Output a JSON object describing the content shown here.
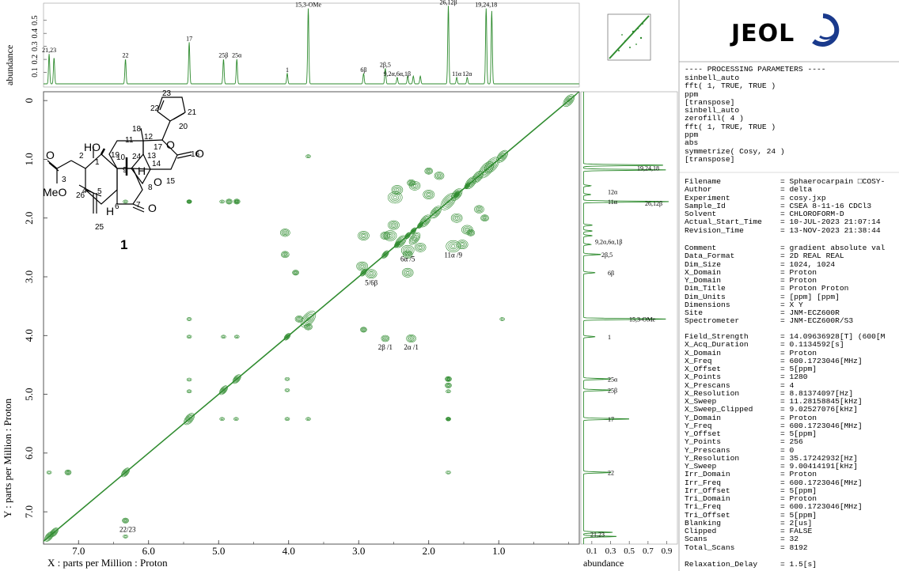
{
  "chart_data": {
    "type": "heatmap",
    "x_axis": {
      "label": "X : parts per Million : Proton",
      "range": [
        7.5,
        -0.15
      ],
      "ticks": [
        "7.0",
        "6.0",
        "5.0",
        "4.0",
        "3.0",
        "2.0",
        "1.0"
      ]
    },
    "y_axis": {
      "label": "Y : parts per Million : Proton",
      "range": [
        -0.15,
        7.55
      ],
      "ticks": [
        "0",
        "1.0",
        "2.0",
        "3.0",
        "4.0",
        "5.0",
        "6.0",
        "7.0"
      ]
    },
    "top_projection": {
      "ylabel": "abundance",
      "ticks": [
        "0.1",
        "0.2",
        "0.3",
        "0.4",
        "0.5"
      ],
      "ylim": [
        0,
        0.62
      ],
      "peaks": [
        {
          "ppm": 7.42,
          "height": 0.23,
          "label": "21,23"
        },
        {
          "ppm": 7.35,
          "height": 0.2,
          "label": ""
        },
        {
          "ppm": 6.33,
          "height": 0.19,
          "label": "22"
        },
        {
          "ppm": 5.42,
          "height": 0.32,
          "label": "17"
        },
        {
          "ppm": 4.93,
          "height": 0.19,
          "label": "25β"
        },
        {
          "ppm": 4.74,
          "height": 0.19,
          "label": "25α"
        },
        {
          "ppm": 4.02,
          "height": 0.08,
          "label": "1"
        },
        {
          "ppm": 3.72,
          "height": 0.58,
          "label": "15,3-OMe"
        },
        {
          "ppm": 2.93,
          "height": 0.08,
          "label": "6β"
        },
        {
          "ppm": 2.62,
          "height": 0.12,
          "label": "2β,5"
        },
        {
          "ppm": 2.45,
          "height": 0.05,
          "label": "9,2α,6α,1β"
        },
        {
          "ppm": 2.3,
          "height": 0.06,
          "label": ""
        },
        {
          "ppm": 2.22,
          "height": 0.06,
          "label": ""
        },
        {
          "ppm": 2.12,
          "height": 0.06,
          "label": ""
        },
        {
          "ppm": 1.72,
          "height": 0.6,
          "label": "26,12β"
        },
        {
          "ppm": 1.6,
          "height": 0.05,
          "label": "11α"
        },
        {
          "ppm": 1.45,
          "height": 0.05,
          "label": "12α"
        },
        {
          "ppm": 1.18,
          "height": 0.58,
          "label": "19,24,18"
        },
        {
          "ppm": 1.1,
          "height": 0.56,
          "label": ""
        }
      ]
    },
    "right_projection": {
      "xlabel": "abundance",
      "ticks": [
        "0.1",
        "0.3",
        "0.5",
        "0.7",
        "0.9"
      ],
      "xlim": [
        0,
        0.98
      ],
      "peak_labels": [
        {
          "ppm": 1.15,
          "label": "19,24,18"
        },
        {
          "ppm": 1.55,
          "label": "12α"
        },
        {
          "ppm": 1.72,
          "label": "11α"
        },
        {
          "ppm": 1.75,
          "label": "26,12β"
        },
        {
          "ppm": 2.4,
          "label": "9,2α,6α,1β"
        },
        {
          "ppm": 2.62,
          "label": "2β,5"
        },
        {
          "ppm": 2.93,
          "label": "6β"
        },
        {
          "ppm": 3.72,
          "label": "15,3-OMe"
        },
        {
          "ppm": 4.02,
          "label": "1"
        },
        {
          "ppm": 4.74,
          "label": "25α"
        },
        {
          "ppm": 4.93,
          "label": "25β"
        },
        {
          "ppm": 5.42,
          "label": "17"
        },
        {
          "ppm": 6.33,
          "label": "22"
        },
        {
          "ppm": 7.38,
          "label": "21,23"
        }
      ]
    },
    "cross_peak_labels": [
      {
        "x": 2.3,
        "y": 2.55,
        "label": "6α /5"
      },
      {
        "x": 1.65,
        "y": 2.48,
        "label": "11α /9"
      },
      {
        "x": 2.82,
        "y": 2.95,
        "label": "5/6β"
      },
      {
        "x": 2.62,
        "y": 4.05,
        "label": "2β /1"
      },
      {
        "x": 2.25,
        "y": 4.05,
        "label": "2α /1"
      },
      {
        "x": 6.3,
        "y": 7.15,
        "label": "22/23"
      }
    ],
    "color": "#2e8b2e"
  },
  "structure": {
    "compound_label": "1",
    "atom_labels": [
      "HO",
      "19",
      "11",
      "12",
      "18",
      "23",
      "22",
      "21",
      "20",
      "17",
      "13",
      "O",
      "16",
      "O",
      "2",
      "1",
      "10",
      "9",
      "24",
      "14",
      "15",
      "O",
      "3",
      "O",
      "MeO",
      "H",
      "5",
      "8",
      "H",
      "26",
      "4",
      "6",
      "7",
      "O",
      "25"
    ]
  },
  "logo": {
    "text": "JEOL"
  },
  "params_header": "---- PROCESSING PARAMETERS ----",
  "processing_steps": [
    "sinbell_auto",
    "fft( 1, TRUE, TRUE )",
    "ppm",
    "[transpose]",
    "sinbell_auto",
    "zerofill( 4 )",
    "fft( 1, TRUE, TRUE )",
    "ppm",
    "abs",
    "symmetrize( Cosy, 24 )",
    "[transpose]"
  ],
  "file_params": [
    [
      "Filename",
      "= Sphaerocarpain □COSY-"
    ],
    [
      "Author",
      "= delta"
    ],
    [
      "Experiment",
      "= cosy.jxp"
    ],
    [
      "Sample_Id",
      "= CSEA 8-11-16 CDCl3"
    ],
    [
      "Solvent",
      "= CHLOROFORM-D"
    ],
    [
      "Actual_Start_Time",
      "= 10-JUL-2023 21:07:14"
    ],
    [
      "Revision_Time",
      "= 13-NOV-2023 21:38:44"
    ]
  ],
  "data_params": [
    [
      "Comment",
      "= gradient absolute val"
    ],
    [
      "Data_Format",
      "= 2D REAL REAL"
    ],
    [
      "Dim_Size",
      "= 1024, 1024"
    ],
    [
      "X_Domain",
      "= Proton"
    ],
    [
      "Y_Domain",
      "= Proton"
    ],
    [
      "Dim_Title",
      "= Proton Proton"
    ],
    [
      "Dim_Units",
      "= [ppm] [ppm]"
    ],
    [
      "Dimensions",
      "= X Y"
    ],
    [
      "Site",
      "= JNM-ECZ600R"
    ],
    [
      "Spectrometer",
      "= JNM-ECZ600R/S3"
    ]
  ],
  "acq_params": [
    [
      "Field_Strength",
      "= 14.09636928[T] (600[M"
    ],
    [
      "X_Acq_Duration",
      "= 0.1134592[s]"
    ],
    [
      "X_Domain",
      "= Proton"
    ],
    [
      "X_Freq",
      "= 600.1723046[MHz]"
    ],
    [
      "X_Offset",
      "= 5[ppm]"
    ],
    [
      "X_Points",
      "= 1280"
    ],
    [
      "X_Prescans",
      "= 4"
    ],
    [
      "X_Resolution",
      "= 8.81374097[Hz]"
    ],
    [
      "X_Sweep",
      "= 11.28158845[kHz]"
    ],
    [
      "X_Sweep_Clipped",
      "= 9.02527076[kHz]"
    ],
    [
      "Y_Domain",
      "= Proton"
    ],
    [
      "Y_Freq",
      "= 600.1723046[MHz]"
    ],
    [
      "Y_Offset",
      "= 5[ppm]"
    ],
    [
      "Y_Points",
      "= 256"
    ],
    [
      "Y_Prescans",
      "= 0"
    ],
    [
      "Y_Resolution",
      "= 35.17242932[Hz]"
    ],
    [
      "Y_Sweep",
      "= 9.00414191[kHz]"
    ],
    [
      "Irr_Domain",
      "= Proton"
    ],
    [
      "Irr_Freq",
      "= 600.1723046[MHz]"
    ],
    [
      "Irr_Offset",
      "= 5[ppm]"
    ],
    [
      "Tri_Domain",
      "= Proton"
    ],
    [
      "Tri_Freq",
      "= 600.1723046[MHz]"
    ],
    [
      "Tri_Offset",
      "= 5[ppm]"
    ],
    [
      "Blanking",
      "= 2[us]"
    ],
    [
      "Clipped",
      "= FALSE"
    ],
    [
      "Scans",
      "= 32"
    ],
    [
      "Total_Scans",
      "= 8192"
    ]
  ],
  "relax_params": [
    [
      "Relaxation_Delay",
      "= 1.5[s]"
    ]
  ]
}
